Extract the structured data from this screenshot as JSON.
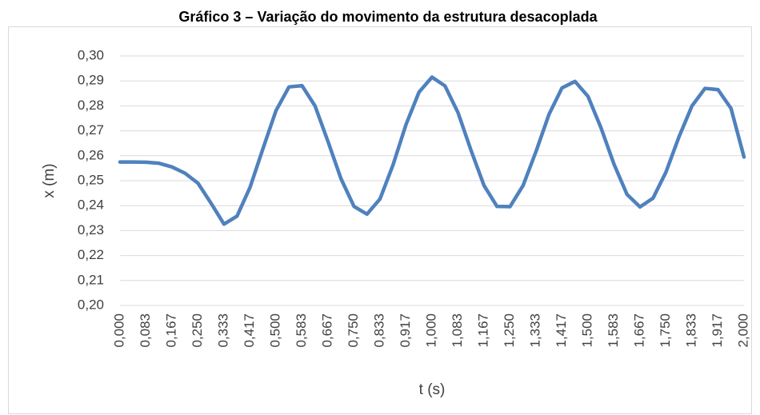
{
  "chart_data": {
    "type": "line",
    "title": "Gráfico 3 – Variação do movimento da estrutura desacoplada",
    "x_label": "t (s)",
    "y_label": "x (m)",
    "categories": [
      "0,000",
      null,
      "0,083",
      null,
      "0,167",
      null,
      "0,250",
      null,
      "0,333",
      null,
      "0,417",
      null,
      "0,500",
      null,
      "0,583",
      null,
      "0,667",
      null,
      "0,750",
      null,
      "0,833",
      null,
      "0,917",
      null,
      "1,000",
      null,
      "1,083",
      null,
      "1,167",
      null,
      "1,250",
      null,
      "1,333",
      null,
      "1,417",
      null,
      "1,500",
      null,
      "1,583",
      null,
      "1,667",
      null,
      "1,750",
      null,
      "1,833",
      null,
      "1,917",
      null,
      "2,000"
    ],
    "values": [
      0.2575,
      0.2575,
      0.2574,
      0.257,
      0.2555,
      0.253,
      0.249,
      0.241,
      0.2326,
      0.2358,
      0.2473,
      0.2629,
      0.2781,
      0.2876,
      0.2881,
      0.28,
      0.2657,
      0.2508,
      0.2397,
      0.2366,
      0.2427,
      0.2563,
      0.2725,
      0.2855,
      0.2915,
      0.288,
      0.2773,
      0.2622,
      0.2481,
      0.2397,
      0.2396,
      0.248,
      0.2617,
      0.2766,
      0.2872,
      0.2898,
      0.2838,
      0.2712,
      0.2566,
      0.2445,
      0.2395,
      0.243,
      0.2535,
      0.2676,
      0.28,
      0.287,
      0.2865,
      0.279,
      0.2595
    ],
    "color": "#4f81bd",
    "ylim": [
      0.2,
      0.3
    ],
    "yticks": [
      {
        "value": 0.2,
        "label": "0,20"
      },
      {
        "value": 0.21,
        "label": "0,21"
      },
      {
        "value": 0.22,
        "label": "0,22"
      },
      {
        "value": 0.23,
        "label": "0,23"
      },
      {
        "value": 0.24,
        "label": "0,24"
      },
      {
        "value": 0.25,
        "label": "0,25"
      },
      {
        "value": 0.26,
        "label": "0,26"
      },
      {
        "value": 0.27,
        "label": "0,27"
      },
      {
        "value": 0.28,
        "label": "0,28"
      },
      {
        "value": 0.29,
        "label": "0,29"
      },
      {
        "value": 0.3,
        "label": "0,30"
      }
    ],
    "grid": true
  }
}
